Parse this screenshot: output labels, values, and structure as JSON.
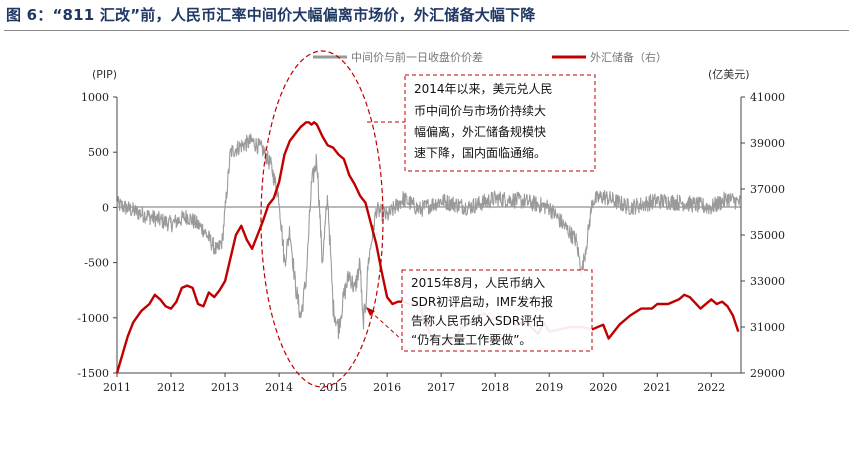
{
  "figure": {
    "title": "图 6：“811 汇改”前，人民币汇率中间价大幅偏离市场价，外汇储备大幅下降"
  },
  "chart_data": {
    "type": "line",
    "left_axis": {
      "unit_label": "(PIP)",
      "ylim": [
        -1500,
        1000
      ],
      "ticks": [
        1000,
        500,
        0,
        -500,
        -1000,
        -1500
      ]
    },
    "right_axis": {
      "unit_label": "(亿美元)",
      "ylim": [
        29000,
        41000
      ],
      "ticks": [
        41000,
        39000,
        37000,
        35000,
        33000,
        31000,
        29000
      ]
    },
    "x_axis": {
      "xlim": [
        2011,
        2022.55
      ],
      "tick_labels": [
        "2011",
        "2012",
        "2013",
        "2014",
        "2015",
        "2016",
        "2017",
        "2018",
        "2019",
        "2020",
        "2021",
        "2022"
      ]
    },
    "legend": {
      "placement": "top-center"
    },
    "series": [
      {
        "name": "中间价与前一日收盘价价差",
        "axis": "left",
        "color": "#999999",
        "x": [
          2011.0,
          2011.3,
          2011.7,
          2012.0,
          2012.3,
          2012.6,
          2012.85,
          2012.95,
          2013.1,
          2013.3,
          2013.5,
          2013.7,
          2013.85,
          2014.0,
          2014.1,
          2014.2,
          2014.3,
          2014.4,
          2014.5,
          2014.6,
          2014.7,
          2014.8,
          2014.9,
          2015.0,
          2015.1,
          2015.2,
          2015.3,
          2015.4,
          2015.5,
          2015.55,
          2015.6,
          2015.65,
          2015.8,
          2016.0,
          2016.3,
          2016.6,
          2017.0,
          2017.5,
          2018.0,
          2018.5,
          2019.0,
          2019.5,
          2019.6,
          2019.7,
          2019.8,
          2020.0,
          2020.5,
          2021.0,
          2021.5,
          2022.0,
          2022.3,
          2022.55
        ],
        "values": [
          30,
          -30,
          -100,
          -150,
          -80,
          -200,
          -400,
          -300,
          500,
          560,
          600,
          520,
          380,
          80,
          -500,
          -200,
          -700,
          -1000,
          -650,
          200,
          450,
          -500,
          100,
          -900,
          -1100,
          -800,
          -600,
          -750,
          -500,
          -1050,
          -900,
          -500,
          -20,
          -80,
          80,
          -20,
          60,
          0,
          80,
          60,
          0,
          -300,
          -600,
          -300,
          60,
          100,
          0,
          60,
          40,
          0,
          80,
          40
        ]
      },
      {
        "name": "外汇储备（右）",
        "axis": "right",
        "color": "#c00000",
        "x": [
          2011.0,
          2011.1,
          2011.2,
          2011.3,
          2011.45,
          2011.6,
          2011.7,
          2011.8,
          2011.9,
          2012.0,
          2012.1,
          2012.2,
          2012.3,
          2012.4,
          2012.5,
          2012.6,
          2012.7,
          2012.8,
          2012.9,
          2013.0,
          2013.1,
          2013.2,
          2013.3,
          2013.4,
          2013.5,
          2013.6,
          2013.7,
          2013.8,
          2013.9,
          2014.0,
          2014.1,
          2014.2,
          2014.3,
          2014.4,
          2014.5,
          2014.55,
          2014.6,
          2014.65,
          2014.7,
          2014.8,
          2014.9,
          2015.0,
          2015.1,
          2015.2,
          2015.3,
          2015.4,
          2015.5,
          2015.6,
          2015.7,
          2015.8,
          2015.9,
          2016.0,
          2016.1,
          2016.2,
          2016.3,
          2016.4,
          2016.5,
          2016.6,
          2016.7,
          2016.8,
          2016.9,
          2017.0,
          2017.1,
          2017.2,
          2017.3,
          2017.4,
          2017.5,
          2017.6,
          2017.7,
          2017.8,
          2017.9,
          2018.0,
          2018.1,
          2018.2,
          2018.3,
          2018.4,
          2018.5,
          2018.6,
          2018.7,
          2018.8,
          2018.9,
          2019.0,
          2019.2,
          2019.4,
          2019.6,
          2019.8,
          2020.0,
          2020.1,
          2020.2,
          2020.3,
          2020.5,
          2020.7,
          2020.9,
          2021.0,
          2021.2,
          2021.4,
          2021.5,
          2021.6,
          2021.8,
          2022.0,
          2022.1,
          2022.2,
          2022.3,
          2022.4,
          2022.5
        ],
        "values": [
          29000,
          29800,
          30600,
          31200,
          31700,
          32000,
          32400,
          32200,
          31900,
          31800,
          32100,
          32700,
          32800,
          32700,
          32000,
          31900,
          32500,
          32300,
          32600,
          33000,
          34000,
          35000,
          35400,
          34800,
          34400,
          35000,
          35600,
          36300,
          36600,
          37300,
          38500,
          39100,
          39400,
          39700,
          39900,
          39900,
          39800,
          39900,
          39800,
          39300,
          38900,
          38800,
          38500,
          38300,
          37600,
          37200,
          36700,
          36400,
          35500,
          34600,
          33400,
          32300,
          32000,
          32100,
          32100,
          32000,
          32000,
          31900,
          31200,
          30700,
          30300,
          30200,
          30300,
          30500,
          30700,
          31000,
          31100,
          31300,
          31500,
          31600,
          31300,
          31400,
          31500,
          31300,
          31200,
          31100,
          31200,
          31200,
          30900,
          30700,
          31200,
          30800,
          30900,
          31000,
          31000,
          30900,
          31100,
          30500,
          30800,
          31100,
          31500,
          31800,
          31800,
          32000,
          32000,
          32200,
          32400,
          32300,
          31800,
          32200,
          32000,
          32100,
          31900,
          31500,
          30800
        ]
      }
    ],
    "annotations": [
      {
        "lines": [
          "2014年以来，美元兑人民",
          "币中间价与市场价持续大",
          "幅偏离，外汇储备规模快",
          "速下降，国内面临通缩。"
        ]
      },
      {
        "lines": [
          "2015年8月，人民币纳入",
          "SDR初评启动，IMF发布报",
          "告称人民币纳入SDR评估",
          "“仍有大量工作要做”。"
        ]
      }
    ]
  }
}
